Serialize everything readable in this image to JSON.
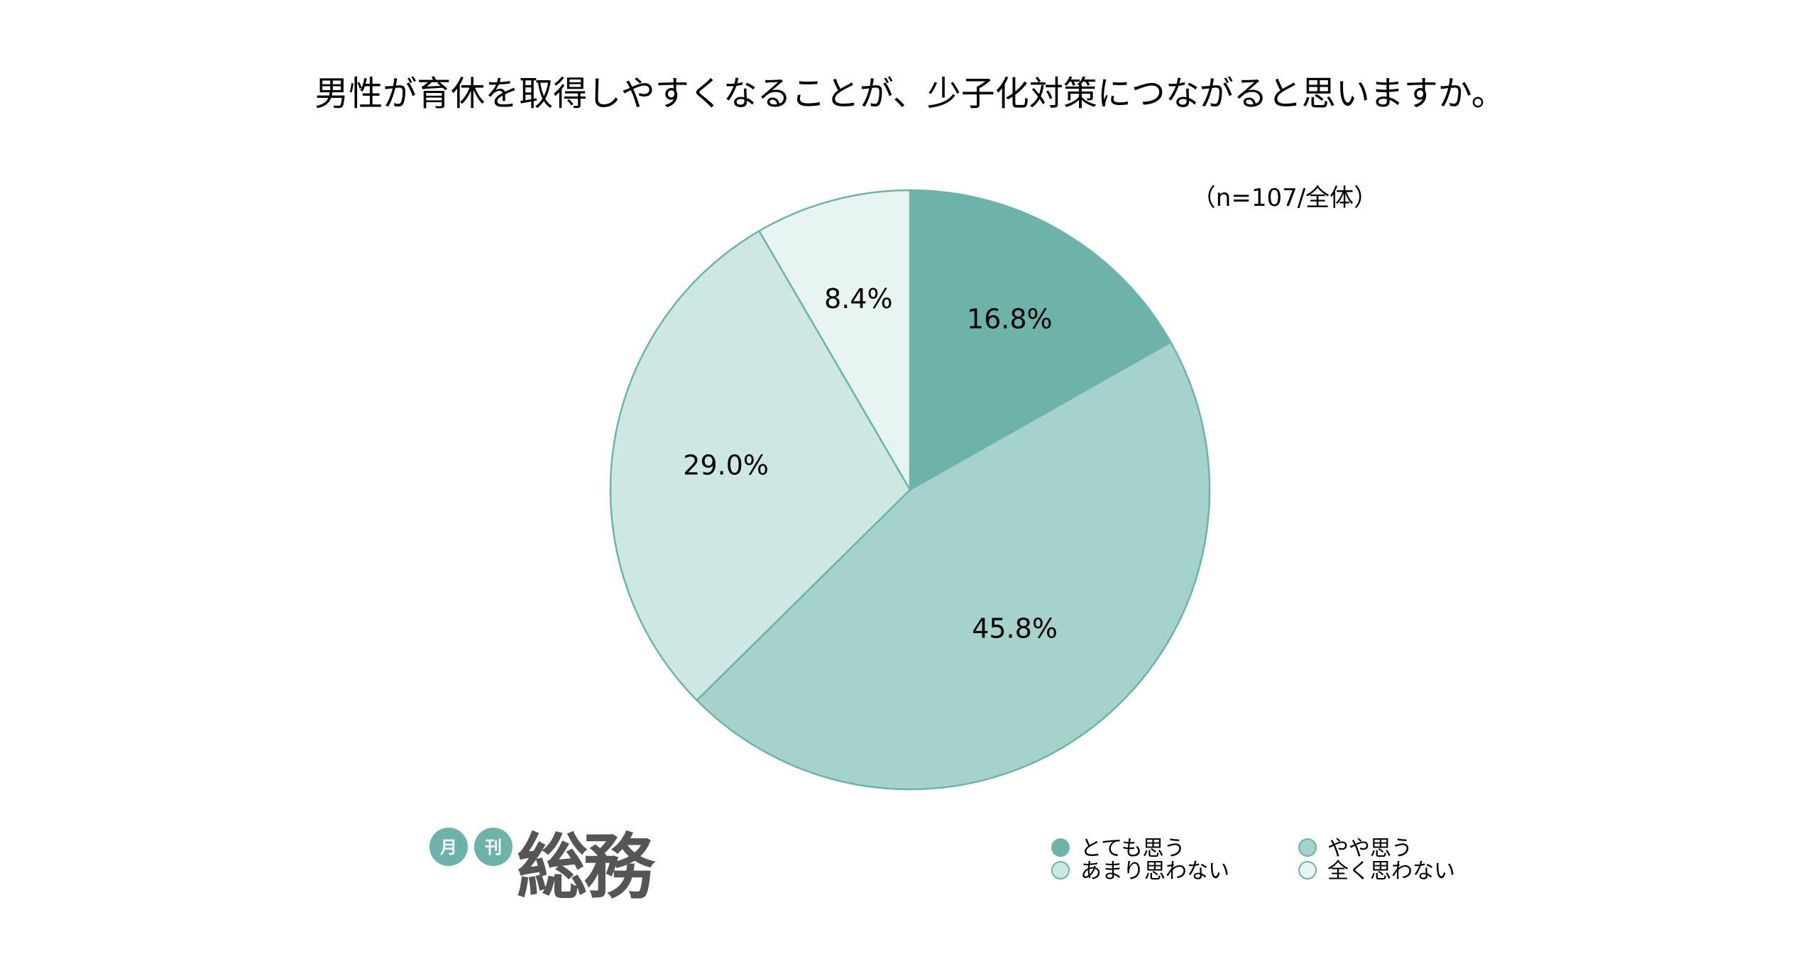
{
  "chart_data": {
    "type": "pie",
    "title": "男性が育休を取得しやすくなることが、少子化対策につながると思いますか。",
    "note": "（n=107/全体）",
    "categories": [
      "とても思う",
      "やや思う",
      "あまり思わない",
      "全く思わない"
    ],
    "values": [
      16.8,
      45.8,
      29.0,
      8.4
    ],
    "labels": [
      "16.8%",
      "45.8%",
      "29.0%",
      "8.4%"
    ],
    "colors": [
      "#6db3aa",
      "#a5d2cc",
      "#cde7e3",
      "#e8f4f2"
    ],
    "start_angle": "12 o'clock",
    "direction": "clockwise",
    "legend_placement": "bottom-right",
    "stroke_color": "#6db3aa"
  },
  "logo": {
    "badges": [
      "月",
      "刊"
    ],
    "name": "総務",
    "badge_color": "#6db3aa"
  }
}
